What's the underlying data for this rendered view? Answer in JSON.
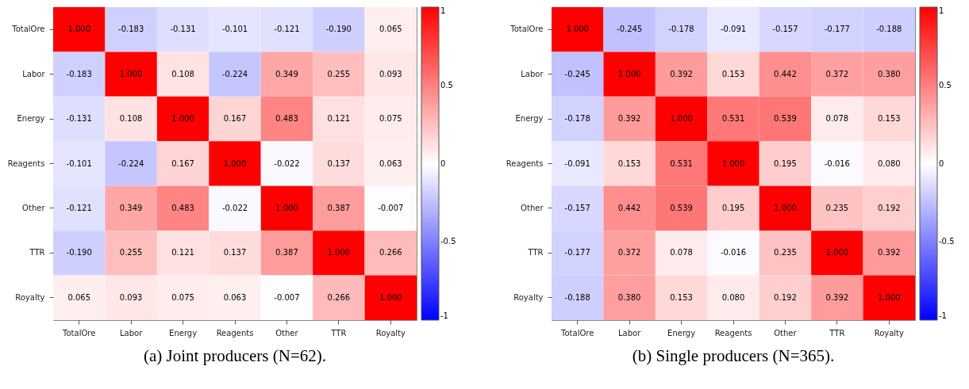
{
  "chart_data": [
    {
      "type": "heatmap",
      "title": "(a) Joint producers (N=62).",
      "categories": [
        "TotalOre",
        "Labor",
        "Energy",
        "Reagents",
        "Other",
        "TTR",
        "Royalty"
      ],
      "y_categories": [
        "TotalOre",
        "Labor",
        "Energy",
        "Reagents",
        "Other",
        "TTR",
        "Royalty"
      ],
      "cells": [
        [
          1.0,
          -0.183,
          -0.131,
          -0.101,
          -0.121,
          -0.19,
          0.065
        ],
        [
          -0.183,
          1.0,
          0.108,
          -0.224,
          0.349,
          0.255,
          0.093
        ],
        [
          -0.131,
          0.108,
          1.0,
          0.167,
          0.483,
          0.121,
          0.075
        ],
        [
          -0.101,
          -0.224,
          0.167,
          1.0,
          -0.022,
          0.137,
          0.063
        ],
        [
          -0.121,
          0.349,
          0.483,
          -0.022,
          1.0,
          0.387,
          -0.007
        ],
        [
          -0.19,
          0.255,
          0.121,
          0.137,
          0.387,
          1.0,
          0.266
        ],
        [
          0.065,
          0.093,
          0.075,
          0.063,
          -0.007,
          0.266,
          1.0
        ]
      ],
      "cell_labels": [
        [
          "1.000",
          "-0.183",
          "-0.131",
          "-0.101",
          "-0.121",
          "-0.190",
          "0.065"
        ],
        [
          "-0.183",
          "1.000",
          "0.108",
          "-0.224",
          "0.349",
          "0.255",
          "0.093"
        ],
        [
          "-0.131",
          "0.108",
          "1.000",
          "0.167",
          "0.483",
          "0.121",
          "0.075"
        ],
        [
          "-0.101",
          "-0.224",
          "0.167",
          "1.000",
          "-0.022",
          "0.137",
          "0.063"
        ],
        [
          "-0.121",
          "0.349",
          "0.483",
          "-0.022",
          "1.000",
          "0.387",
          "-0.007"
        ],
        [
          "-0.190",
          "0.255",
          "0.121",
          "0.137",
          "0.387",
          "1.000",
          "0.266"
        ],
        [
          "0.065",
          "0.093",
          "0.075",
          "0.063",
          "-0.007",
          "0.266",
          "1.000"
        ]
      ],
      "clim": [
        -1,
        1
      ],
      "cticks": [
        -1,
        -0.5,
        0,
        0.5,
        1
      ]
    },
    {
      "type": "heatmap",
      "title": "(b) Single producers (N=365).",
      "categories": [
        "TotalOre",
        "Labor",
        "Energy",
        "Reagents",
        "Other",
        "TTR",
        "Royalty"
      ],
      "y_categories": [
        "TotalOre",
        "Labor",
        "Energy",
        "Reagents",
        "Other",
        "TTR",
        "Royalty"
      ],
      "cells": [
        [
          1.0,
          -0.245,
          -0.178,
          -0.091,
          -0.157,
          -0.177,
          -0.188
        ],
        [
          -0.245,
          1.0,
          0.392,
          0.153,
          0.442,
          0.372,
          0.38
        ],
        [
          -0.178,
          0.392,
          1.0,
          0.531,
          0.539,
          0.078,
          0.153
        ],
        [
          -0.091,
          0.153,
          0.531,
          1.0,
          0.195,
          -0.016,
          0.08
        ],
        [
          -0.157,
          0.442,
          0.539,
          0.195,
          1.0,
          0.235,
          0.192
        ],
        [
          -0.177,
          0.372,
          0.078,
          -0.016,
          0.235,
          1.0,
          0.392
        ],
        [
          -0.188,
          0.38,
          0.153,
          0.08,
          0.192,
          0.392,
          1.0
        ]
      ],
      "cell_labels": [
        [
          "1.000",
          "-0.245",
          "-0.178",
          "-0.091",
          "-0.157",
          "-0.177",
          "-0.188"
        ],
        [
          "-0.245",
          "1.000",
          "0.392",
          "0.153",
          "0.442",
          "0.372",
          "0.380"
        ],
        [
          "-0.178",
          "0.392",
          "1.000",
          "0.531",
          "0.539",
          "0.078",
          "0.153"
        ],
        [
          "-0.091",
          "0.153",
          "0.531",
          "1.000",
          "0.195",
          "-0.016",
          "0.080"
        ],
        [
          "-0.157",
          "0.442",
          "0.539",
          "0.195",
          "1.000",
          "0.235",
          "0.192"
        ],
        [
          "-0.177",
          "0.372",
          "0.078",
          "-0.016",
          "0.235",
          "1.000",
          "0.392"
        ],
        [
          "-0.188",
          "0.380",
          "0.153",
          "0.080",
          "0.192",
          "0.392",
          "1.000"
        ]
      ],
      "clim": [
        -1,
        1
      ],
      "cticks": [
        -1,
        -0.5,
        0,
        0.5,
        1
      ]
    }
  ]
}
